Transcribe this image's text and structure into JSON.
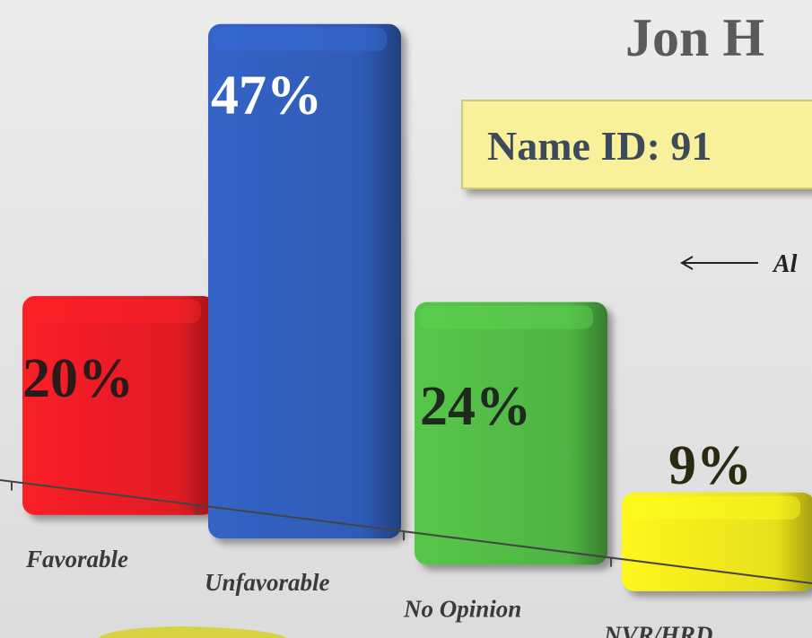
{
  "chart_data": {
    "type": "bar",
    "title": "Jon H",
    "subtitle": "Name ID: 91",
    "annotation": "Al",
    "categories": [
      "Favorable",
      "Unfavorable",
      "No Opinion",
      "NVR/HRD"
    ],
    "values": [
      20,
      47,
      24,
      9
    ],
    "value_labels": [
      "20%",
      "47%",
      "24%",
      "9%"
    ],
    "colors": [
      "#e21d24",
      "#2f5bb5",
      "#4fb443",
      "#e8e01a"
    ]
  }
}
